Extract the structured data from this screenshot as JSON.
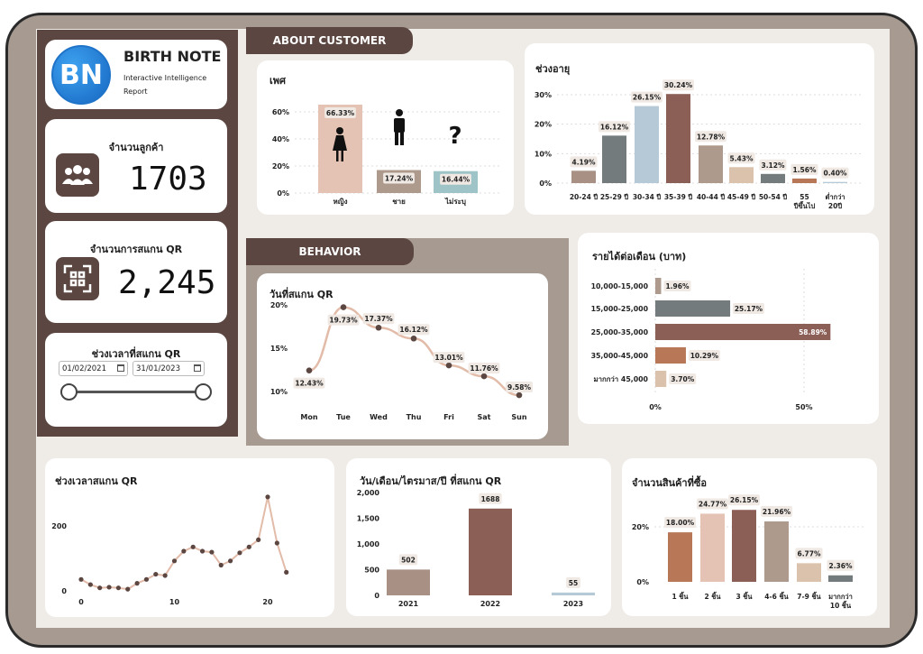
{
  "brand": {
    "logo": "BN",
    "name": "BIRTH NOTE",
    "subtitle_line1": "Interactive Intelligence",
    "subtitle_line2": "Report"
  },
  "kpi": {
    "customers_label": "จำนวนลูกค้า",
    "customers_value": "1703",
    "customers_icon": "users-icon",
    "scans_label": "จำนวนการสแกน QR",
    "scans_value": "2,245",
    "scans_icon": "qr-scan-icon"
  },
  "date_filter": {
    "label": "ช่วงเวลาที่สแกน QR",
    "start": "01/02/2021",
    "end": "31/01/2023"
  },
  "sections": {
    "about": "ABOUT CUSTOMER",
    "behavior": "BEHAVIOR"
  },
  "colors": {
    "brown_dark": "#5b4641",
    "rose": "#e5c3b4",
    "taupe": "#ad9a8c",
    "teal": "#9fc4c7",
    "gray": "#737b7d",
    "blue_gray": "#b5c9d6",
    "mauve": "#8b5e56",
    "copper": "#b87857",
    "beige": "#dbc2ad"
  },
  "chart_data": [
    {
      "id": "gender",
      "type": "bar",
      "title": "เพศ",
      "categories": [
        "หญิง",
        "ชาย",
        "ไม่ระบุ"
      ],
      "values": [
        66.33,
        17.24,
        16.44
      ],
      "labels": [
        "66.33%",
        "17.24%",
        "16.44%"
      ],
      "yticks": [
        "0%",
        "20%",
        "40%",
        "60%"
      ],
      "ylim": [
        0,
        70
      ],
      "icons": [
        "female-icon",
        "male-icon",
        "question-icon"
      ],
      "colors": [
        "#e5c3b4",
        "#ad9a8c",
        "#9fc4c7"
      ]
    },
    {
      "id": "age",
      "type": "bar",
      "title": "ช่วงอายุ",
      "categories": [
        "20-24 ปี",
        "25-29 ปี",
        "30-34 ปี",
        "35-39 ปี",
        "40-44 ปี",
        "45-49 ปี",
        "50-54 ปี",
        "55 ปีขึ้นไป",
        "ต่ำกว่า 20 ปี"
      ],
      "values": [
        4.19,
        16.12,
        26.15,
        30.24,
        12.78,
        5.43,
        3.12,
        1.56,
        0.4
      ],
      "labels": [
        "4.19%",
        "16.12%",
        "26.15%",
        "30.24%",
        "12.78%",
        "5.43%",
        "3.12%",
        "1.56%",
        "0.40%"
      ],
      "yticks": [
        "0%",
        "10%",
        "20%",
        "30%"
      ],
      "ylim": [
        0,
        33
      ],
      "colors": [
        "#a89184",
        "#737b7d",
        "#b5c9d6",
        "#8b5e56",
        "#ad9a8c",
        "#dbc2ad",
        "#737b7d",
        "#b87857",
        "#b5c9d6"
      ]
    },
    {
      "id": "weekday",
      "type": "line",
      "title": "วันที่สแกน QR",
      "categories": [
        "Mon",
        "Tue",
        "Wed",
        "Thu",
        "Fri",
        "Sat",
        "Sun"
      ],
      "values": [
        12.43,
        19.73,
        17.37,
        16.12,
        13.01,
        11.76,
        9.58
      ],
      "labels": [
        "12.43%",
        "19.73%",
        "17.37%",
        "16.12%",
        "13.01%",
        "11.76%",
        "9.58%"
      ],
      "yticks": [
        "10%",
        "15%",
        "20%"
      ],
      "ylim": [
        9,
        20
      ]
    },
    {
      "id": "income",
      "type": "bar",
      "orientation": "horizontal",
      "title": "รายได้ต่อเดือน (บาท)",
      "categories": [
        "10,000-15,000",
        "15,000-25,000",
        "25,000-35,000",
        "35,000-45,000",
        "มากกว่า 45,000"
      ],
      "values": [
        1.96,
        25.17,
        58.89,
        10.29,
        3.7
      ],
      "labels": [
        "1.96%",
        "25.17%",
        "58.89%",
        "10.29%",
        "3.70%"
      ],
      "xticks": [
        "0%",
        "50%"
      ],
      "xlim": [
        0,
        62
      ],
      "colors": [
        "#ad9a8c",
        "#737b7d",
        "#8b5e56",
        "#b87857",
        "#dbc2ad"
      ]
    },
    {
      "id": "scan_time",
      "type": "line",
      "title": "ช่วงเวลาสแกน QR",
      "x": [
        0,
        1,
        2,
        3,
        4,
        5,
        6,
        7,
        8,
        9,
        10,
        11,
        12,
        13,
        14,
        15,
        16,
        17,
        18,
        19,
        20,
        21,
        22
      ],
      "values": [
        38,
        22,
        12,
        14,
        12,
        8,
        26,
        38,
        54,
        50,
        95,
        125,
        138,
        125,
        122,
        82,
        95,
        120,
        138,
        160,
        292,
        150,
        60
      ],
      "xticks": [
        "0",
        "10",
        "20"
      ],
      "yticks": [
        "0",
        "200"
      ],
      "ylim": [
        0,
        300
      ]
    },
    {
      "id": "year",
      "type": "bar",
      "title": "วัน/เดือน/ไตรมาส/ปี ที่สแกน QR",
      "categories": [
        "2021",
        "2022",
        "2023"
      ],
      "values": [
        502,
        1688,
        55
      ],
      "labels": [
        "502",
        "1688",
        "55"
      ],
      "yticks": [
        "0",
        "500",
        "1,000",
        "1,500",
        "2,000"
      ],
      "ylim": [
        0,
        2000
      ],
      "colors": [
        "#a89184",
        "#8b5e56",
        "#b5c9d6"
      ]
    },
    {
      "id": "items",
      "type": "bar",
      "title": "จำนวนสินค้าที่ซื้อ",
      "categories": [
        "1 ชิ้น",
        "2 ชิ้น",
        "3 ชิ้น",
        "4-6 ชิ้น",
        "7-9 ชิ้น",
        "มากกว่า 10 ชิ้น"
      ],
      "values": [
        18.0,
        24.77,
        26.15,
        21.96,
        6.77,
        2.36
      ],
      "labels": [
        "18.00%",
        "24.77%",
        "26.15%",
        "21.96%",
        "6.77%",
        "2.36%"
      ],
      "yticks": [
        "0%",
        "20%"
      ],
      "ylim": [
        0,
        27
      ],
      "colors": [
        "#b87857",
        "#e5c3b4",
        "#8b5e56",
        "#ad9a8c",
        "#dbc2ad",
        "#737b7d"
      ]
    }
  ]
}
